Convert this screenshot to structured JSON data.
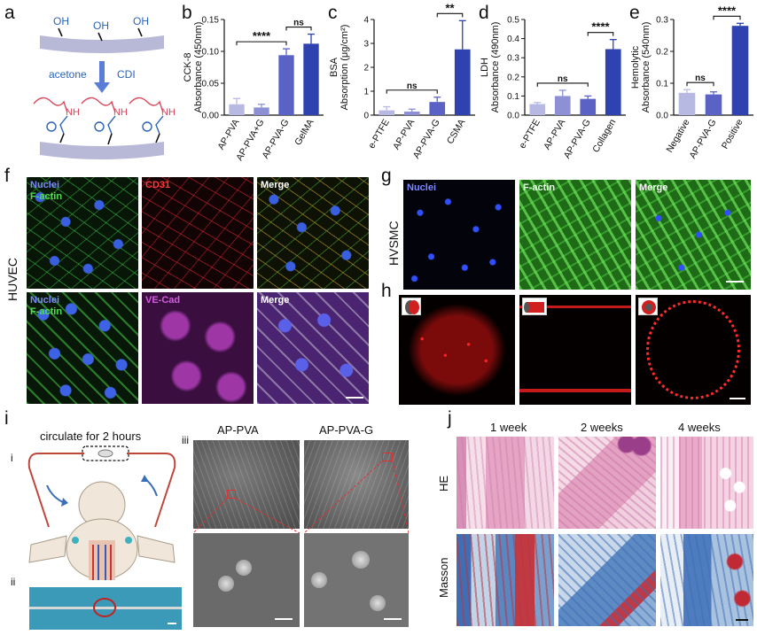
{
  "panel_letters": {
    "a": "a",
    "b": "b",
    "c": "c",
    "d": "d",
    "e": "e",
    "f": "f",
    "g": "g",
    "h": "h",
    "i": "i",
    "j": "j"
  },
  "panel_a": {
    "group": "OH",
    "reagent_left": "acetone",
    "reagent_right": "CDI",
    "amine": "NH",
    "colors": {
      "surface": "#b8b9d6",
      "oh": "#2a62b8",
      "linker": "#d9495e",
      "carbonyl": "#2a62b8"
    }
  },
  "chart_data": [
    {
      "type": "bar",
      "panel": "b",
      "ylabel_lines": [
        "CCK-8",
        "Absorbance (450nm)"
      ],
      "categories": [
        "AP-PVA",
        "AP-PVA+G",
        "AP-PVA-G",
        "GelMA"
      ],
      "values": [
        0.017,
        0.012,
        0.094,
        0.112
      ],
      "errors": [
        0.009,
        0.005,
        0.01,
        0.015
      ],
      "ylim": [
        0,
        0.15
      ],
      "yticks": [
        "0.00",
        "0.05",
        "0.10",
        "0.15"
      ],
      "colors": [
        "#b8b9e3",
        "#8e90d5",
        "#5a62c6",
        "#2e42b0"
      ],
      "significance": [
        {
          "from": 0,
          "to": 2,
          "label": "****"
        },
        {
          "from": 2,
          "to": 3,
          "label": "ns"
        }
      ]
    },
    {
      "type": "bar",
      "panel": "c",
      "ylabel_lines": [
        "BSA",
        "Absorption (μg/cm²)"
      ],
      "categories": [
        "e-PTFE",
        "AP-PVA",
        "AP-PVA-G",
        "CSMA"
      ],
      "values": [
        0.2,
        0.15,
        0.55,
        2.75
      ],
      "errors": [
        0.15,
        0.1,
        0.2,
        1.2
      ],
      "ylim": [
        0,
        4
      ],
      "yticks": [
        "0",
        "1",
        "2",
        "3",
        "4"
      ],
      "colors": [
        "#b8b9e3",
        "#8e90d5",
        "#5a62c6",
        "#2e42b0"
      ],
      "significance": [
        {
          "from": 0,
          "to": 2,
          "label": "ns"
        },
        {
          "from": 2,
          "to": 3,
          "label": "**"
        }
      ]
    },
    {
      "type": "bar",
      "panel": "d",
      "ylabel_lines": [
        "LDH",
        "Absorbance (490nm)"
      ],
      "categories": [
        "e-PTFE",
        "AP-PVA",
        "AP-PVA-G",
        "Collagen"
      ],
      "values": [
        0.058,
        0.1,
        0.085,
        0.345
      ],
      "errors": [
        0.008,
        0.03,
        0.015,
        0.05
      ],
      "ylim": [
        0,
        0.5
      ],
      "yticks": [
        "0.0",
        "0.1",
        "0.2",
        "0.3",
        "0.4",
        "0.5"
      ],
      "colors": [
        "#b8b9e3",
        "#8e90d5",
        "#5a62c6",
        "#2e42b0"
      ],
      "significance": [
        {
          "from": 0,
          "to": 2,
          "label": "ns"
        },
        {
          "from": 2,
          "to": 3,
          "label": "****"
        }
      ]
    },
    {
      "type": "bar",
      "panel": "e",
      "ylabel_lines": [
        "Hemolytic",
        "Absorbance (540nm)"
      ],
      "categories": [
        "Negative",
        "AP-PVA-G",
        "Positive"
      ],
      "values": [
        0.07,
        0.065,
        0.28
      ],
      "errors": [
        0.01,
        0.008,
        0.008
      ],
      "ylim": [
        0,
        0.3
      ],
      "yticks": [
        "0.0",
        "0.1",
        "0.2",
        "0.3"
      ],
      "colors": [
        "#b8b9e3",
        "#5a62c6",
        "#2e42b0"
      ],
      "significance": [
        {
          "from": 0,
          "to": 1,
          "label": "ns"
        },
        {
          "from": 1,
          "to": 2,
          "label": "****"
        }
      ]
    }
  ],
  "panel_f": {
    "side_label": "HUVEC",
    "row1": {
      "nuclei": "Nuclei",
      "factin": "F-actin",
      "cd31": "CD31",
      "merge": "Merge"
    },
    "row2": {
      "nuclei": "Nuclei",
      "factin": "F-actin",
      "vecad": "VE-Cad",
      "merge": "Merge"
    }
  },
  "panel_g": {
    "side_label": "HVSMC",
    "nuclei": "Nuclei",
    "factin": "F-actin",
    "merge": "Merge"
  },
  "panel_i": {
    "title": "circulate for 2 hours",
    "sub_i": "i",
    "sub_ii": "ii",
    "sub_iii": "iii",
    "col1": "AP-PVA",
    "col2": "AP-PVA-G"
  },
  "panel_j": {
    "cols": [
      "1 week",
      "2 weeks",
      "4 weeks"
    ],
    "row1": "HE",
    "row2": "Masson"
  },
  "colors": {
    "nuclei_label": "#6f7bff",
    "factin_label": "#45d14a",
    "cd31_label": "#ff3333",
    "vecad_label": "#cc4fd6"
  }
}
